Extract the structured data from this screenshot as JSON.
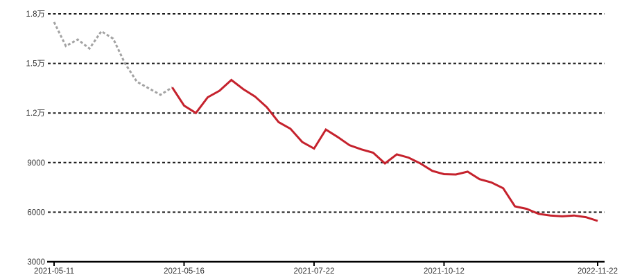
{
  "chart_data": {
    "type": "line",
    "title": "",
    "xlabel": "",
    "ylabel": "",
    "ylim": [
      3000,
      18000
    ],
    "grid": "dotted-horizontal",
    "legend": "none",
    "y_ticks": {
      "labels": [
        "1.8万",
        "1.5万",
        "1.2万",
        "9000",
        "6000",
        "3000"
      ],
      "values": [
        18000,
        15000,
        12000,
        9000,
        6000,
        3000
      ]
    },
    "x_ticks": {
      "labels": [
        "2021-05-11",
        "2021-05-16",
        "2021-07-22",
        "2021-10-12",
        "2022-11-22"
      ],
      "indices": [
        0,
        11,
        22,
        33,
        46
      ]
    },
    "point_count": 47,
    "series": [
      {
        "name": "historical-dashed",
        "style": "dashed",
        "color": "#a3a3a3",
        "start_index": 0,
        "values": [
          17500,
          16050,
          16450,
          15900,
          16950,
          16500,
          15000,
          13900,
          13500,
          13100,
          13550
        ]
      },
      {
        "name": "current-solid",
        "style": "solid",
        "color": "#c5222d",
        "start_index": 10,
        "values": [
          13550,
          12450,
          12000,
          12950,
          13350,
          14000,
          13450,
          13000,
          12350,
          11450,
          11050,
          10250,
          9850,
          11000,
          10550,
          10050,
          9800,
          9600,
          8950,
          9500,
          9300,
          8950,
          8500,
          8300,
          8280,
          8450,
          8000,
          7800,
          7450,
          6350,
          6200,
          5900,
          5800,
          5750,
          5800,
          5700,
          5470
        ]
      }
    ]
  },
  "colors": {
    "background": "#ffffff",
    "grid_line": "#1a1a1a",
    "axis_line": "#000000",
    "tick_label": "#333333",
    "series_historical": "#a3a3a3",
    "series_current": "#c5222d"
  }
}
